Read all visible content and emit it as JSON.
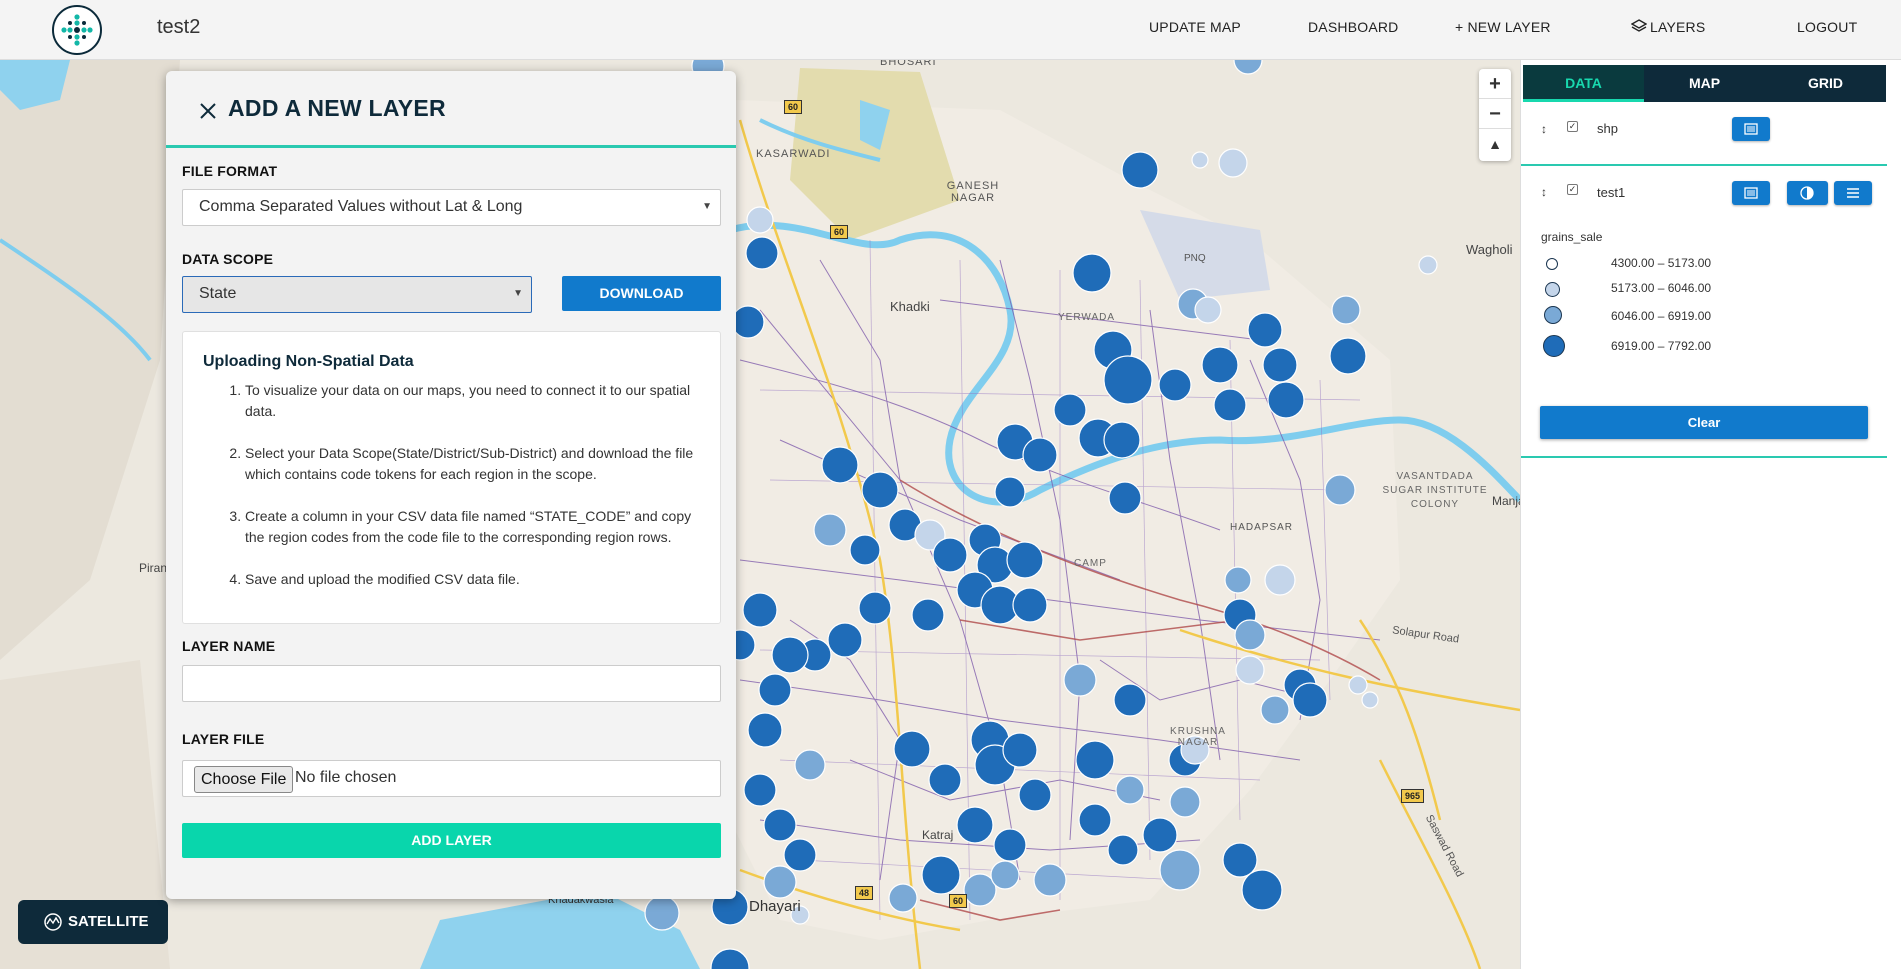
{
  "header": {
    "app_title": "test2",
    "nav": {
      "update_map": "UPDATE MAP",
      "dashboard": "DASHBOARD",
      "new_layer": "+ NEW LAYER",
      "layers": "LAYERS",
      "logout": "LOGOUT"
    }
  },
  "map": {
    "zoom_in": "+",
    "zoom_out": "−",
    "reset_north": "▲",
    "satellite_label": "SATELLITE",
    "place_labels": {
      "bhosari": "BHOSARI",
      "kasarwadi": "KASARWADI",
      "ganesh_nagar": "GANESH NAGAR",
      "khadki": "Khadki",
      "yerwada": "YERWADA",
      "pnq": "PNQ",
      "wagholi": "Wagholi",
      "vasantdada": "VASANTDADA SUGAR INSTITUTE COLONY",
      "manjari": "Manjari",
      "hadapsar": "HADAPSAR",
      "camp": "CAMP",
      "krushna_nagar": "KRUSHNA NAGAR",
      "katraj": "Katraj",
      "dhayari": "Dhayari",
      "khadakwasla": "Khadakwasla",
      "pirangut": "Piran",
      "solapur_road": "Solapur Road",
      "saswad_road": "Saswad Road",
      "highway_60": "60",
      "highway_48": "48",
      "highway_965": "965"
    }
  },
  "add_layer_panel": {
    "title": "ADD A NEW LAYER",
    "file_format_label": "FILE FORMAT",
    "file_format_value": "Comma Separated Values without Lat & Long",
    "data_scope_label": "DATA SCOPE",
    "data_scope_value": "State",
    "download_label": "DOWNLOAD",
    "info": {
      "heading": "Uploading Non-Spatial Data",
      "steps": [
        "To visualize your data on our maps, you need to connect it to our spatial data.",
        "Select your Data Scope(State/District/Sub-District) and download the file which contains code tokens for each region in the scope.",
        "Create a column in your CSV data file named “STATE_CODE” and copy the region codes from the code file to the corresponding region rows.",
        "Save and upload the modified CSV data file."
      ]
    },
    "layer_name_label": "LAYER NAME",
    "layer_name_value": "",
    "layer_file_label": "LAYER FILE",
    "choose_file_label": "Choose File",
    "no_file_label": "No file chosen",
    "add_layer_label": "ADD LAYER"
  },
  "sidebar": {
    "tabs": [
      "DATA",
      "MAP",
      "GRID"
    ],
    "active_tab": "DATA",
    "layers": [
      {
        "name": "shp",
        "checked": true
      },
      {
        "name": "test1",
        "checked": true
      }
    ],
    "legend": {
      "title": "grains_sale",
      "items": [
        {
          "label": "4300.00 – 5173.00",
          "color": "#ffffff"
        },
        {
          "label": "5173.00 – 6046.00",
          "color": "#c4d5ea"
        },
        {
          "label": "6046.00 – 6919.00",
          "color": "#7aa9d6"
        },
        {
          "label": "6919.00 – 7792.00",
          "color": "#1f6cb8"
        }
      ]
    },
    "clear_label": "Clear"
  },
  "colors": {
    "brand_dark": "#0e2a3a",
    "accent_teal": "#2ac9b0",
    "button_blue": "#117acc",
    "add_green": "#09d6ac"
  }
}
